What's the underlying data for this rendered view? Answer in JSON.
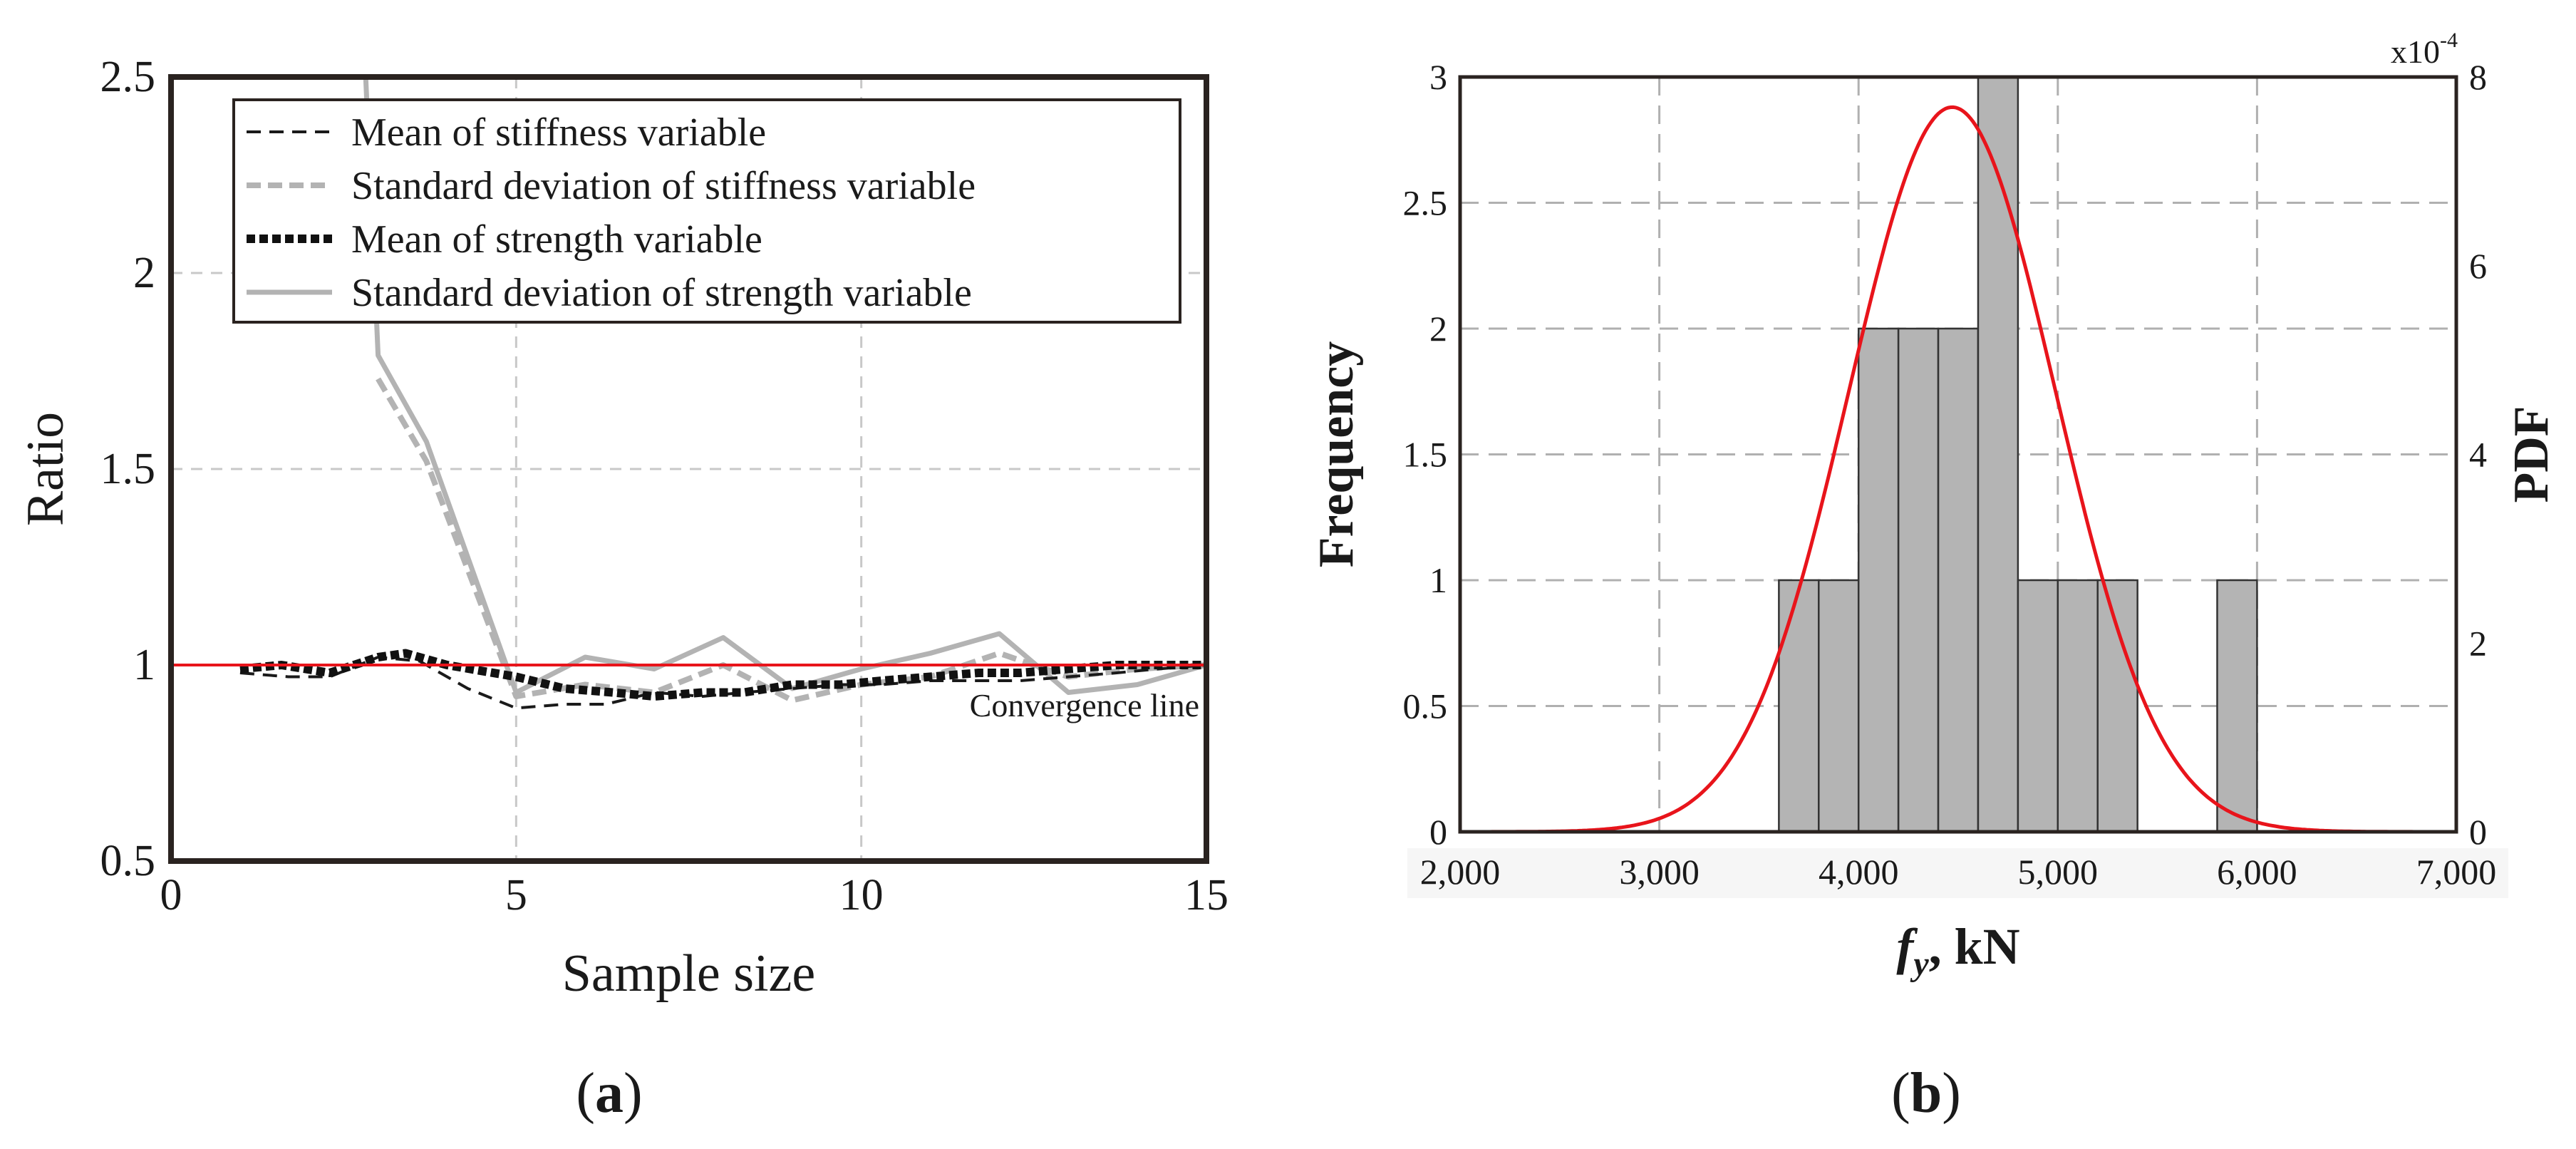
{
  "chart_data": [
    {
      "panel_label": "(a)",
      "type": "line",
      "title": "",
      "xlabel": "Sample size",
      "ylabel": "Ratio",
      "xlim": [
        0,
        15
      ],
      "ylim": [
        0.5,
        2.5
      ],
      "xticks": [
        "0",
        "5",
        "10",
        "15"
      ],
      "xtick_values": [
        0,
        5,
        10,
        15
      ],
      "yticks": [
        "0.5",
        "1",
        "1.5",
        "2",
        "2.5"
      ],
      "ytick_values": [
        0.5,
        1,
        1.5,
        2,
        2.5
      ],
      "grid": true,
      "legend_position": "top-right",
      "convergence": {
        "value": 1.0,
        "label": "Convergence line",
        "color": "#e8141b"
      },
      "series": [
        {
          "name": "Mean of stiffness variable",
          "style": "dash-thin",
          "color": "#1a1a1a",
          "x": [
            1,
            1.7,
            2.3,
            3,
            3.6,
            4.3,
            5,
            5.7,
            6.3,
            7,
            7.7,
            8.3,
            9,
            9.7,
            10.3,
            11,
            11.7,
            12.3,
            13,
            13.7,
            14.3,
            15
          ],
          "y": [
            0.98,
            0.97,
            0.97,
            1.02,
            1.01,
            0.94,
            0.89,
            0.9,
            0.9,
            0.93,
            0.92,
            0.93,
            0.94,
            0.95,
            0.95,
            0.96,
            0.96,
            0.96,
            0.97,
            0.98,
            0.99,
            1.0
          ]
        },
        {
          "name": "Standard deviation of stiffness variable",
          "style": "dash-light",
          "color": "#b3b3b3",
          "x": [
            3,
            3.7,
            5,
            6,
            7,
            8,
            9,
            10,
            11,
            12,
            13,
            14,
            15
          ],
          "y": [
            1.73,
            1.52,
            0.92,
            0.95,
            0.93,
            1.0,
            0.91,
            0.95,
            0.97,
            1.03,
            0.97,
            0.99,
            1.0
          ]
        },
        {
          "name": "Mean of strength variable",
          "style": "dot-thick",
          "color": "#111111",
          "x": [
            1,
            1.6,
            2.3,
            3,
            3.4,
            4,
            5,
            5.7,
            6.4,
            7,
            7.7,
            8.3,
            9,
            9.7,
            10.3,
            11,
            11.7,
            12.3,
            13,
            13.7,
            14.3,
            15
          ],
          "y": [
            0.99,
            1.0,
            0.98,
            1.02,
            1.03,
            1.0,
            0.97,
            0.94,
            0.93,
            0.92,
            0.93,
            0.93,
            0.95,
            0.95,
            0.96,
            0.97,
            0.98,
            0.98,
            0.99,
            1.0,
            1.0,
            1.0
          ]
        },
        {
          "name": "Standard deviation of strength variable",
          "style": "solid-light",
          "color": "#b3b3b3",
          "x": [
            2.82,
            3,
            3.7,
            5,
            6,
            7,
            8,
            9,
            10,
            11,
            12,
            13,
            14,
            15
          ],
          "y": [
            2.5,
            1.79,
            1.57,
            0.93,
            1.02,
            0.99,
            1.07,
            0.94,
            0.99,
            1.03,
            1.08,
            0.93,
            0.95,
            1.0
          ]
        }
      ]
    },
    {
      "panel_label": "(b)",
      "type": "bar",
      "title": "",
      "xlabel": "f",
      "xlabel_subscript": "y",
      "xlabel_unit": ", kN",
      "ylabel": "Frequency",
      "y2label": "PDF",
      "y2_multiplier": "x10",
      "y2_multiplier_exponent": "-4",
      "xlim": [
        2000,
        7000
      ],
      "ylim": [
        0,
        3
      ],
      "y2lim": [
        0,
        8
      ],
      "xticks": [
        "2,000",
        "3,000",
        "4,000",
        "5,000",
        "6,000",
        "7,000"
      ],
      "xtick_values": [
        2000,
        3000,
        4000,
        5000,
        6000,
        7000
      ],
      "yticks": [
        "0",
        "0.5",
        "1",
        "1.5",
        "2",
        "2.5",
        "3"
      ],
      "ytick_values": [
        0,
        0.5,
        1,
        1.5,
        2,
        2.5,
        3
      ],
      "y2ticks": [
        "0",
        "2",
        "4",
        "6",
        "8"
      ],
      "y2tick_values": [
        0,
        2,
        4,
        6,
        8
      ],
      "grid": true,
      "bar_color": "#b4b4b4",
      "bins": [
        {
          "from": 3600,
          "to": 3800,
          "count": 1
        },
        {
          "from": 3800,
          "to": 4000,
          "count": 1
        },
        {
          "from": 4000,
          "to": 4200,
          "count": 2
        },
        {
          "from": 4200,
          "to": 4400,
          "count": 2
        },
        {
          "from": 4400,
          "to": 4600,
          "count": 2
        },
        {
          "from": 4600,
          "to": 4800,
          "count": 3
        },
        {
          "from": 4800,
          "to": 5000,
          "count": 1
        },
        {
          "from": 5000,
          "to": 5200,
          "count": 1
        },
        {
          "from": 5200,
          "to": 5400,
          "count": 1
        },
        {
          "from": 5800,
          "to": 6000,
          "count": 1
        }
      ],
      "pdf": {
        "type": "normal",
        "mean": 4470,
        "std": 520,
        "peak": 7.68,
        "color": "#e8141b"
      }
    }
  ]
}
